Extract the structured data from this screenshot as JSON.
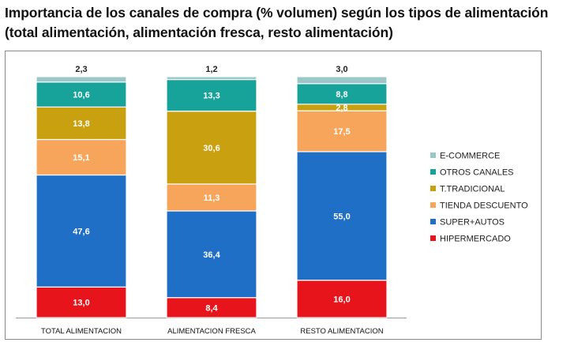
{
  "title_line1": "Importancia de los canales de compra (% volumen) según los tipos de alimentación",
  "title_line2": "(total alimentación, alimentación fresca, resto alimentación)",
  "colors": {
    "HIPERMERCADO": "#e8141b",
    "SUPER+AUTOS": "#1f6fc6",
    "TIENDA DESCUENTO": "#f7a55a",
    "T.TRADICIONAL": "#c9a010",
    "OTROS CANALES": "#17a39a",
    "E-COMMERCE": "#9cc6c8"
  },
  "chart_data": {
    "type": "bar",
    "stacked": true,
    "categories": [
      "TOTAL ALIMENTACION",
      "ALIMENTACION FRESCA",
      "RESTO ALIMENTACION"
    ],
    "series": [
      {
        "name": "HIPERMERCADO",
        "values": [
          13.0,
          8.4,
          16.0
        ],
        "labels": [
          "13,0",
          "8,4",
          "16,0"
        ]
      },
      {
        "name": "SUPER+AUTOS",
        "values": [
          47.6,
          36.4,
          55.0
        ],
        "labels": [
          "47,6",
          "36,4",
          "55,0"
        ]
      },
      {
        "name": "TIENDA DESCUENTO",
        "values": [
          15.1,
          11.3,
          17.5
        ],
        "labels": [
          "15,1",
          "11,3",
          "17,5"
        ]
      },
      {
        "name": "T.TRADICIONAL",
        "values": [
          13.8,
          30.6,
          2.8
        ],
        "labels": [
          "13,8",
          "30,6",
          "2,8"
        ]
      },
      {
        "name": "OTROS CANALES",
        "values": [
          10.6,
          13.3,
          8.8
        ],
        "labels": [
          "10,6",
          "13,3",
          "8,8"
        ]
      },
      {
        "name": "E-COMMERCE",
        "values": [
          2.3,
          1.2,
          3.0
        ],
        "labels": [
          "2,3",
          "1,2",
          "3,0"
        ]
      }
    ],
    "legend_order": [
      "E-COMMERCE",
      "OTROS CANALES",
      "T.TRADICIONAL",
      "TIENDA DESCUENTO",
      "SUPER+AUTOS",
      "HIPERMERCADO"
    ],
    "legend_position": "right",
    "ylim": [
      0,
      100
    ],
    "grid": false
  }
}
